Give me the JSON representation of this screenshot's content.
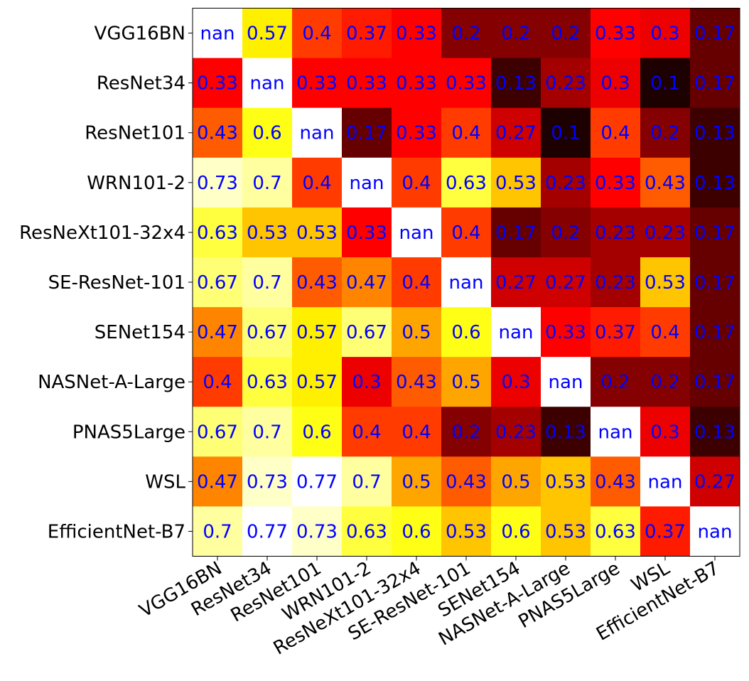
{
  "chart_data": {
    "type": "heatmap",
    "colormap": "hot",
    "vmin": 0.1,
    "vmax": 0.77,
    "nan_color": "#ffffff",
    "annotation_color": "#0000ff",
    "grid": false,
    "xlabel": "",
    "ylabel": "",
    "rows": [
      "VGG16BN",
      "ResNet34",
      "ResNet101",
      "WRN101-2",
      "ResNeXt101-32x4",
      "SE-ResNet-101",
      "SENet154",
      "NASNet-A-Large",
      "PNAS5Large",
      "WSL",
      "EfficientNet-B7"
    ],
    "cols": [
      "VGG16BN",
      "ResNet34",
      "ResNet101",
      "WRN101-2",
      "ResNeXt101-32x4",
      "SE-ResNet-101",
      "SENet154",
      "NASNet-A-Large",
      "PNAS5Large",
      "WSL",
      "EfficientNet-B7"
    ],
    "values": [
      [
        null,
        0.57,
        0.4,
        0.37,
        0.33,
        0.2,
        0.2,
        0.2,
        0.33,
        0.3,
        0.17
      ],
      [
        0.33,
        null,
        0.33,
        0.33,
        0.33,
        0.33,
        0.13,
        0.23,
        0.3,
        0.1,
        0.17
      ],
      [
        0.43,
        0.6,
        null,
        0.17,
        0.33,
        0.4,
        0.27,
        0.1,
        0.4,
        0.2,
        0.13
      ],
      [
        0.73,
        0.7,
        0.4,
        null,
        0.4,
        0.63,
        0.53,
        0.23,
        0.33,
        0.43,
        0.13
      ],
      [
        0.63,
        0.53,
        0.53,
        0.33,
        null,
        0.4,
        0.17,
        0.2,
        0.23,
        0.23,
        0.17
      ],
      [
        0.67,
        0.7,
        0.43,
        0.47,
        0.4,
        null,
        0.27,
        0.27,
        0.23,
        0.53,
        0.17
      ],
      [
        0.47,
        0.67,
        0.57,
        0.67,
        0.5,
        0.6,
        null,
        0.33,
        0.37,
        0.4,
        0.17
      ],
      [
        0.4,
        0.63,
        0.57,
        0.3,
        0.43,
        0.5,
        0.3,
        null,
        0.2,
        0.2,
        0.17
      ],
      [
        0.67,
        0.7,
        0.6,
        0.4,
        0.4,
        0.2,
        0.23,
        0.13,
        null,
        0.3,
        0.13
      ],
      [
        0.47,
        0.73,
        0.77,
        0.7,
        0.5,
        0.43,
        0.5,
        0.53,
        0.43,
        null,
        0.27
      ],
      [
        0.7,
        0.77,
        0.73,
        0.63,
        0.6,
        0.53,
        0.6,
        0.53,
        0.63,
        0.37,
        null
      ]
    ],
    "cell_labels": [
      [
        "nan",
        "0.57",
        "0.4",
        "0.37",
        "0.33",
        "0.2",
        "0.2",
        "0.2",
        "0.33",
        "0.3",
        "0.17"
      ],
      [
        "0.33",
        "nan",
        "0.33",
        "0.33",
        "0.33",
        "0.33",
        "0.13",
        "0.23",
        "0.3",
        "0.1",
        "0.17"
      ],
      [
        "0.43",
        "0.6",
        "nan",
        "0.17",
        "0.33",
        "0.4",
        "0.27",
        "0.1",
        "0.4",
        "0.2",
        "0.13"
      ],
      [
        "0.73",
        "0.7",
        "0.4",
        "nan",
        "0.4",
        "0.63",
        "0.53",
        "0.23",
        "0.33",
        "0.43",
        "0.13"
      ],
      [
        "0.63",
        "0.53",
        "0.53",
        "0.33",
        "nan",
        "0.4",
        "0.17",
        "0.2",
        "0.23",
        "0.23",
        "0.17"
      ],
      [
        "0.67",
        "0.7",
        "0.43",
        "0.47",
        "0.4",
        "nan",
        "0.27",
        "0.27",
        "0.23",
        "0.53",
        "0.17"
      ],
      [
        "0.47",
        "0.67",
        "0.57",
        "0.67",
        "0.5",
        "0.6",
        "nan",
        "0.33",
        "0.37",
        "0.4",
        "0.17"
      ],
      [
        "0.4",
        "0.63",
        "0.57",
        "0.3",
        "0.43",
        "0.5",
        "0.3",
        "nan",
        "0.2",
        "0.2",
        "0.17"
      ],
      [
        "0.67",
        "0.7",
        "0.6",
        "0.4",
        "0.4",
        "0.2",
        "0.23",
        "0.13",
        "nan",
        "0.3",
        "0.13"
      ],
      [
        "0.47",
        "0.73",
        "0.77",
        "0.7",
        "0.5",
        "0.43",
        "0.5",
        "0.53",
        "0.43",
        "nan",
        "0.27"
      ],
      [
        "0.7",
        "0.77",
        "0.73",
        "0.63",
        "0.6",
        "0.53",
        "0.6",
        "0.53",
        "0.63",
        "0.37",
        "nan"
      ]
    ]
  }
}
